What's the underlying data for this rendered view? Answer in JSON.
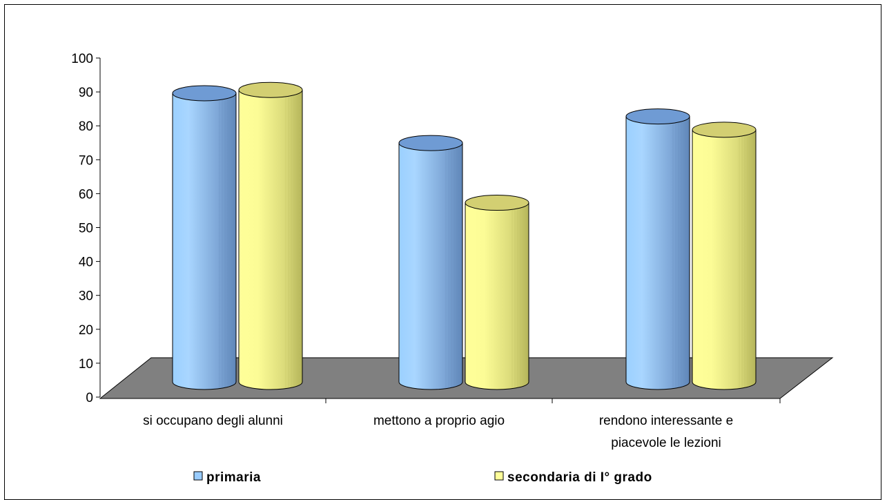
{
  "chart_data": {
    "type": "bar",
    "categories": [
      [
        "si occupano degli alunni"
      ],
      [
        "mettono a proprio agio"
      ],
      [
        "rendono interessante e",
        "piacevole le lezioni"
      ]
    ],
    "series": [
      {
        "name": "primaria",
        "values": [
          87,
          72,
          80
        ]
      },
      {
        "name": "secondaria di I° grado",
        "values": [
          88,
          54,
          76
        ]
      }
    ],
    "ylim": [
      0,
      100
    ],
    "yticks": [
      0,
      10,
      20,
      30,
      40,
      50,
      60,
      70,
      80,
      90,
      100
    ],
    "colors": {
      "primaria": "#99ccff",
      "secondaria": "#ffff99",
      "floor": "#808080"
    },
    "legend_position": "bottom",
    "grid": false
  }
}
